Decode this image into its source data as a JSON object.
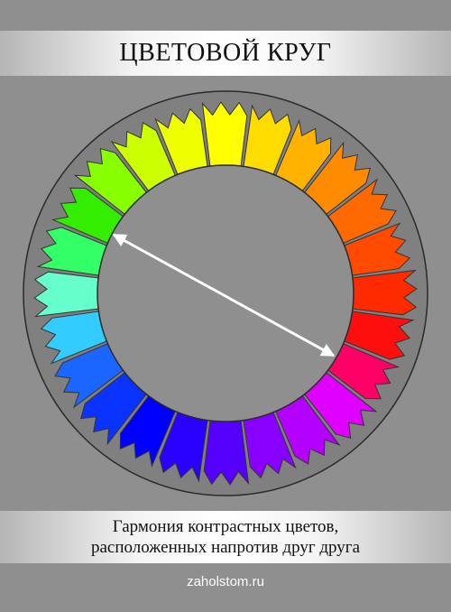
{
  "header": {
    "title": "ЦВЕТОВОЙ КРУГ"
  },
  "wheel": {
    "colors": [
      "#ffff00",
      "#ffdc00",
      "#ffb300",
      "#ff8c00",
      "#ff6a00",
      "#ff4a00",
      "#ff2a00",
      "#ff0e0e",
      "#ff0066",
      "#e000ff",
      "#b300ff",
      "#8800ff",
      "#5500ff",
      "#2a00ff",
      "#0000ff",
      "#0a33ff",
      "#1a66ff",
      "#33ccff",
      "#66ffcc",
      "#33ff66",
      "#33ee00",
      "#88ff00",
      "#ccff00",
      "#eeff00"
    ],
    "ring_color": "#808080",
    "outline_color": "#333333",
    "arrow_color": "#ffffff"
  },
  "caption": {
    "line1": "Гармония контрастных цветов,",
    "line2": "расположенных напротив друг друга"
  },
  "footer": {
    "site": "zaholstom.ru"
  }
}
